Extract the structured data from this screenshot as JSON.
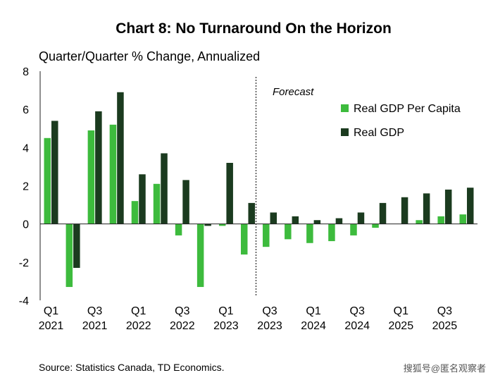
{
  "chart_data": {
    "type": "bar",
    "title": "Chart 8: No Turnaround On the Horizon",
    "ylabel": "Quarter/Quarter % Change, Annualized",
    "xlabel": "",
    "ylim": [
      -4,
      8
    ],
    "yticks": [
      -4,
      -2,
      0,
      2,
      4,
      6,
      8
    ],
    "grid": false,
    "legend_position": "top-right",
    "quarters": [
      "2021Q1",
      "2021Q2",
      "2021Q3",
      "2021Q4",
      "2022Q1",
      "2022Q2",
      "2022Q3",
      "2022Q4",
      "2023Q1",
      "2023Q2",
      "2023Q3",
      "2023Q4",
      "2024Q1",
      "2024Q2",
      "2024Q3",
      "2024Q4",
      "2025Q1",
      "2025Q2",
      "2025Q3",
      "2025Q4"
    ],
    "tick_labels": [
      {
        "quarter": "Q1",
        "year": "2021",
        "index": 0
      },
      {
        "quarter": "Q3",
        "year": "2021",
        "index": 2
      },
      {
        "quarter": "Q1",
        "year": "2022",
        "index": 4
      },
      {
        "quarter": "Q3",
        "year": "2022",
        "index": 6
      },
      {
        "quarter": "Q1",
        "year": "2023",
        "index": 8
      },
      {
        "quarter": "Q3",
        "year": "2023",
        "index": 10
      },
      {
        "quarter": "Q1",
        "year": "2024",
        "index": 12
      },
      {
        "quarter": "Q3",
        "year": "2024",
        "index": 14
      },
      {
        "quarter": "Q1",
        "year": "2025",
        "index": 16
      },
      {
        "quarter": "Q3",
        "year": "2025",
        "index": 18
      }
    ],
    "series": [
      {
        "name": "Real GDP Per Capita",
        "color": "#3dbb3d",
        "values": [
          4.5,
          -3.3,
          4.9,
          5.2,
          1.2,
          2.1,
          -0.6,
          -3.3,
          -0.1,
          -1.6,
          -1.2,
          -0.8,
          -1.0,
          -0.9,
          -0.6,
          -0.2,
          0.0,
          0.2,
          0.4,
          0.5
        ]
      },
      {
        "name": "Real GDP",
        "color": "#1b3b1f",
        "values": [
          5.4,
          -2.3,
          5.9,
          6.9,
          2.6,
          3.7,
          2.3,
          -0.1,
          3.2,
          1.1,
          0.6,
          0.4,
          0.2,
          0.3,
          0.6,
          1.1,
          1.4,
          1.6,
          1.8,
          1.9
        ]
      }
    ],
    "forecast_label": "Forecast",
    "forecast_start_index": 10,
    "source": "Source: Statistics Canada, TD Economics.",
    "watermark": "搜狐号@匿名观察者"
  }
}
